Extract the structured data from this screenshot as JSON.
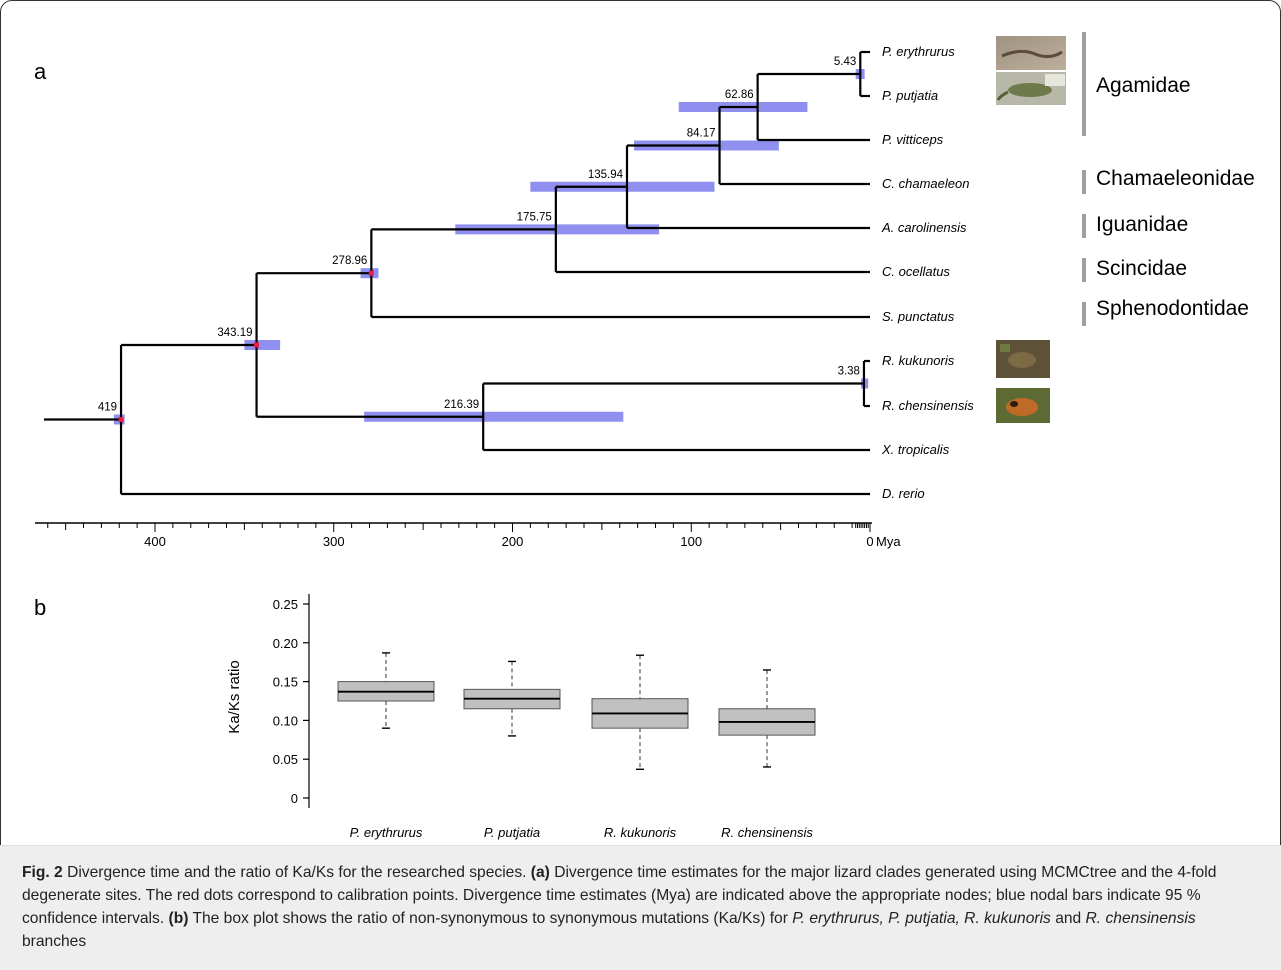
{
  "panel_a": {
    "letter": "a",
    "axis": {
      "ticks": [
        400,
        300,
        200,
        100,
        0
      ],
      "unit": "Mya"
    },
    "species": [
      {
        "id": "per",
        "name": "P. erythrurus"
      },
      {
        "id": "ppu",
        "name": "P. putjatia"
      },
      {
        "id": "pvi",
        "name": "P. vitticeps"
      },
      {
        "id": "cch",
        "name": "C. chamaeleon"
      },
      {
        "id": "aca",
        "name": "A. carolinensis"
      },
      {
        "id": "coc",
        "name": "C. ocellatus"
      },
      {
        "id": "spu",
        "name": "S. punctatus"
      },
      {
        "id": "rku",
        "name": "R. kukunoris"
      },
      {
        "id": "rch",
        "name": "R. chensinensis"
      },
      {
        "id": "xtr",
        "name": "X. tropicalis"
      },
      {
        "id": "dre",
        "name": "D. rerio"
      }
    ],
    "nodes": [
      {
        "id": "n1",
        "age": 5.43,
        "label": "5.43",
        "ci": [
          8,
          3
        ],
        "calibration": false
      },
      {
        "id": "n2",
        "age": 62.86,
        "label": "62.86",
        "ci": [
          107,
          35
        ],
        "calibration": false
      },
      {
        "id": "n3",
        "age": 84.17,
        "label": "84.17",
        "ci": [
          132,
          51
        ],
        "calibration": false
      },
      {
        "id": "n4",
        "age": 135.94,
        "label": "135.94",
        "ci": [
          190,
          87
        ],
        "calibration": false
      },
      {
        "id": "n5",
        "age": 175.75,
        "label": "175.75",
        "ci": [
          232,
          118
        ],
        "calibration": false
      },
      {
        "id": "n6",
        "age": 278.96,
        "label": "278.96",
        "ci": [
          285,
          275
        ],
        "calibration": true
      },
      {
        "id": "n7",
        "age": 343.19,
        "label": "343.19",
        "ci": [
          350,
          330
        ],
        "calibration": true
      },
      {
        "id": "n8",
        "age": 3.38,
        "label": "3.38",
        "ci": [
          5,
          1
        ],
        "calibration": false
      },
      {
        "id": "n9",
        "age": 216.39,
        "label": "216.39",
        "ci": [
          283,
          138
        ],
        "calibration": false
      },
      {
        "id": "n10",
        "age": 419,
        "label": "419",
        "ci": [
          423,
          417
        ],
        "calibration": true
      }
    ],
    "families": [
      {
        "name": "Agamidae"
      },
      {
        "name": "Chamaeleonidae"
      },
      {
        "name": "Iguanidae"
      },
      {
        "name": "Scincidae"
      },
      {
        "name": "Sphenodontidae"
      }
    ]
  },
  "panel_b": {
    "letter": "b"
  },
  "chart_data": {
    "type": "box",
    "ylabel": "Ka/Ks ratio",
    "ylim": [
      0,
      0.25
    ],
    "yticks": [
      "0",
      "0.05",
      "0.10",
      "0.15",
      "0.20",
      "0.25"
    ],
    "categories": [
      "P. erythrurus",
      "P. putjatia",
      "R. kukunoris",
      "R. chensinensis"
    ],
    "boxes": [
      {
        "name": "P. erythrurus",
        "whisker_low": 0.09,
        "q1": 0.125,
        "median": 0.137,
        "q3": 0.15,
        "whisker_high": 0.187
      },
      {
        "name": "P. putjatia",
        "whisker_low": 0.08,
        "q1": 0.115,
        "median": 0.128,
        "q3": 0.14,
        "whisker_high": 0.176
      },
      {
        "name": "R. kukunoris",
        "whisker_low": 0.037,
        "q1": 0.09,
        "median": 0.109,
        "q3": 0.128,
        "whisker_high": 0.184
      },
      {
        "name": "R. chensinensis",
        "whisker_low": 0.04,
        "q1": 0.081,
        "median": 0.098,
        "q3": 0.115,
        "whisker_high": 0.165
      }
    ],
    "box_color": "#c0c0c0"
  },
  "caption": {
    "fig_label": "Fig. 2",
    "s1": " Divergence time and the ratio of Ka/Ks for the researched species. ",
    "a_tag": "(a)",
    "s2": " Divergence time estimates for the major lizard clades generated using MCMCtree and the 4-fold degenerate sites. The red dots correspond to calibration points. Divergence time estimates (Mya) are indicated above the appropriate nodes; blue nodal bars indicate 95 % confidence intervals. ",
    "b_tag": "(b)",
    "s3": " The box plot shows the ratio of non-synonymous to synonymous mutations (Ka/Ks) for ",
    "sp1": "P. erythrurus, P. putjatia, R. kukunoris",
    "s4": " and ",
    "sp2": "R. chensinensis",
    "s5": " branches"
  },
  "colors": {
    "ci_bar": "#8f8ff0",
    "calibration_dot": "#e8204a",
    "caption_bg": "#eeeeee",
    "family_bar": "#a0a0a0"
  }
}
